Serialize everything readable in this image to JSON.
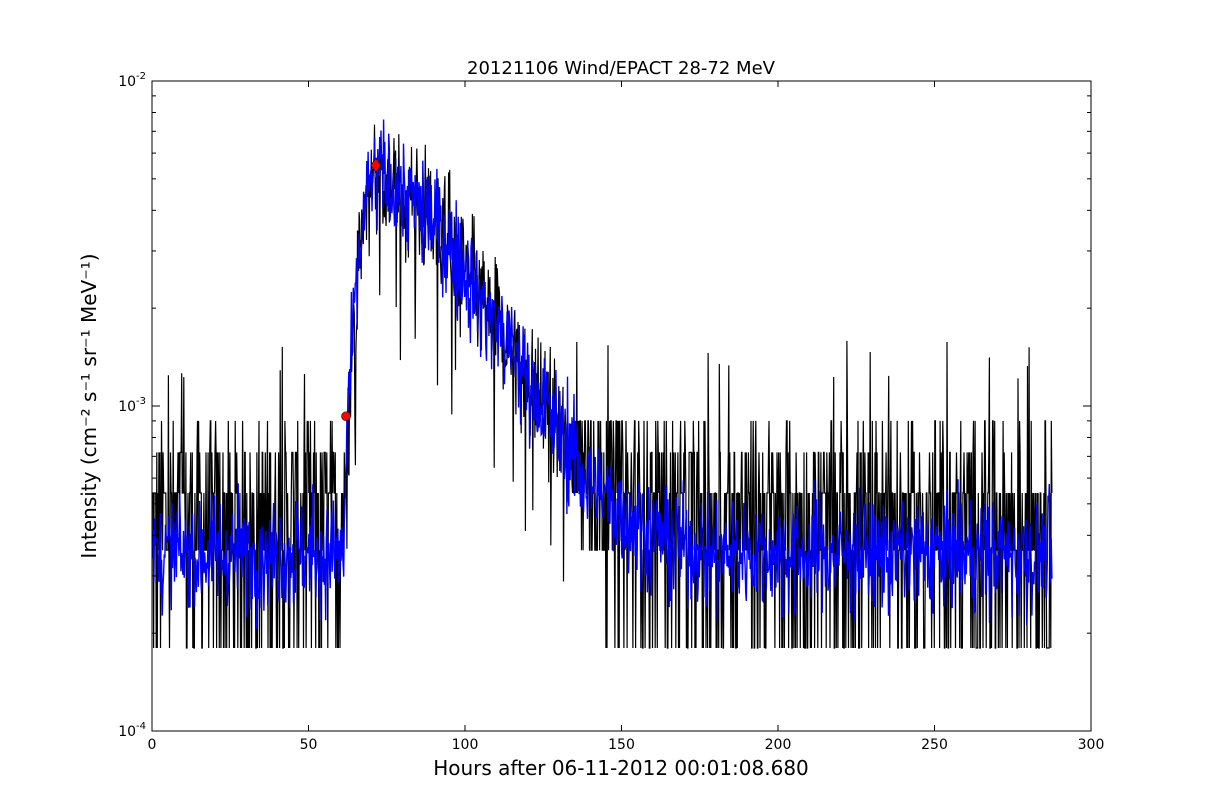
{
  "chart_data": {
    "type": "line",
    "title": "20121106 Wind/EPACT 28-72 MeV",
    "xlabel": "Hours after 06-11-2012 00:01:08.680",
    "ylabel": "Intensity (cm⁻² s⁻¹ sr⁻¹ MeV⁻¹)",
    "xlim": [
      0,
      300
    ],
    "ylim": [
      0.0001,
      0.01
    ],
    "yscale": "log",
    "x_ticks": [
      0,
      50,
      100,
      150,
      200,
      250,
      300
    ],
    "y_ticks": [
      {
        "value": 0.0001,
        "mantissa": "10",
        "exponent": "-4"
      },
      {
        "value": 0.001,
        "mantissa": "10",
        "exponent": "-3"
      },
      {
        "value": 0.01,
        "mantissa": "10",
        "exponent": "-2"
      }
    ],
    "grid": false,
    "noise_floor": 0.00018,
    "series": [
      {
        "role": "raw-intensity",
        "color": "#000000",
        "x_start": 0,
        "x_end": 287.5,
        "samples": 1700,
        "levels": [
          0.00018,
          0.00036,
          0.00054,
          0.00072,
          0.0009
        ],
        "profile_x": [
          0,
          61.5,
          62,
          64,
          66,
          68,
          70,
          72,
          75,
          80,
          85,
          90,
          95,
          100,
          105,
          110,
          115,
          120,
          125,
          130,
          135,
          140,
          145,
          150,
          155,
          160,
          170,
          180,
          190,
          200,
          287.5
        ],
        "profile_y": [
          0.00035,
          0.00035,
          0.0008,
          0.0015,
          0.0028,
          0.004,
          0.0049,
          0.0052,
          0.005,
          0.0045,
          0.0041,
          0.0037,
          0.0031,
          0.0026,
          0.0021,
          0.0018,
          0.0015,
          0.0012,
          0.001,
          0.00085,
          0.00068,
          0.00058,
          0.00052,
          0.00047,
          0.00043,
          0.0004,
          0.00037,
          0.00035,
          0.00035,
          0.00035,
          0.00035
        ]
      },
      {
        "role": "smoothed-intensity",
        "color": "#0000ff",
        "profile_x": [
          0,
          61.5,
          62,
          64,
          66,
          68,
          70,
          72,
          75,
          80,
          85,
          90,
          95,
          100,
          105,
          110,
          115,
          120,
          125,
          130,
          135,
          140,
          145,
          150,
          155,
          160,
          170,
          180,
          190,
          200,
          287.5
        ],
        "profile_y": [
          0.00035,
          0.00035,
          0.0008,
          0.0015,
          0.0028,
          0.004,
          0.0049,
          0.0052,
          0.005,
          0.0045,
          0.0041,
          0.0037,
          0.0031,
          0.0026,
          0.0021,
          0.0018,
          0.0015,
          0.0012,
          0.001,
          0.00085,
          0.00068,
          0.00058,
          0.00052,
          0.00047,
          0.00043,
          0.0004,
          0.00037,
          0.00035,
          0.00035,
          0.00035,
          0.00035
        ]
      }
    ],
    "markers": [
      {
        "role": "onset",
        "shape": "circle",
        "x": 62,
        "y": 0.00093,
        "color": "#ff0000"
      },
      {
        "role": "peak",
        "shape": "diamond",
        "x": 71.5,
        "y": 0.0055,
        "color": "#ff0000"
      }
    ]
  }
}
